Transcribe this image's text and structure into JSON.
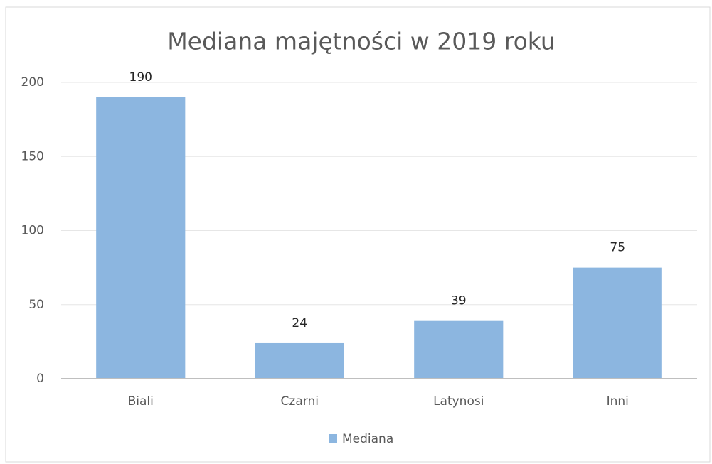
{
  "chart_data": {
    "type": "bar",
    "title": "Mediana majętności w 2019 roku",
    "categories": [
      "Biali",
      "Czarni",
      "Latynosi",
      "Inni"
    ],
    "series": [
      {
        "name": "Mediana",
        "color": "#8cb6e0",
        "values": [
          190,
          24,
          39,
          75
        ]
      }
    ],
    "ylim": [
      0,
      200
    ],
    "yticks": [
      0,
      50,
      100,
      150,
      200
    ],
    "grid": true,
    "legend": "bottom"
  }
}
